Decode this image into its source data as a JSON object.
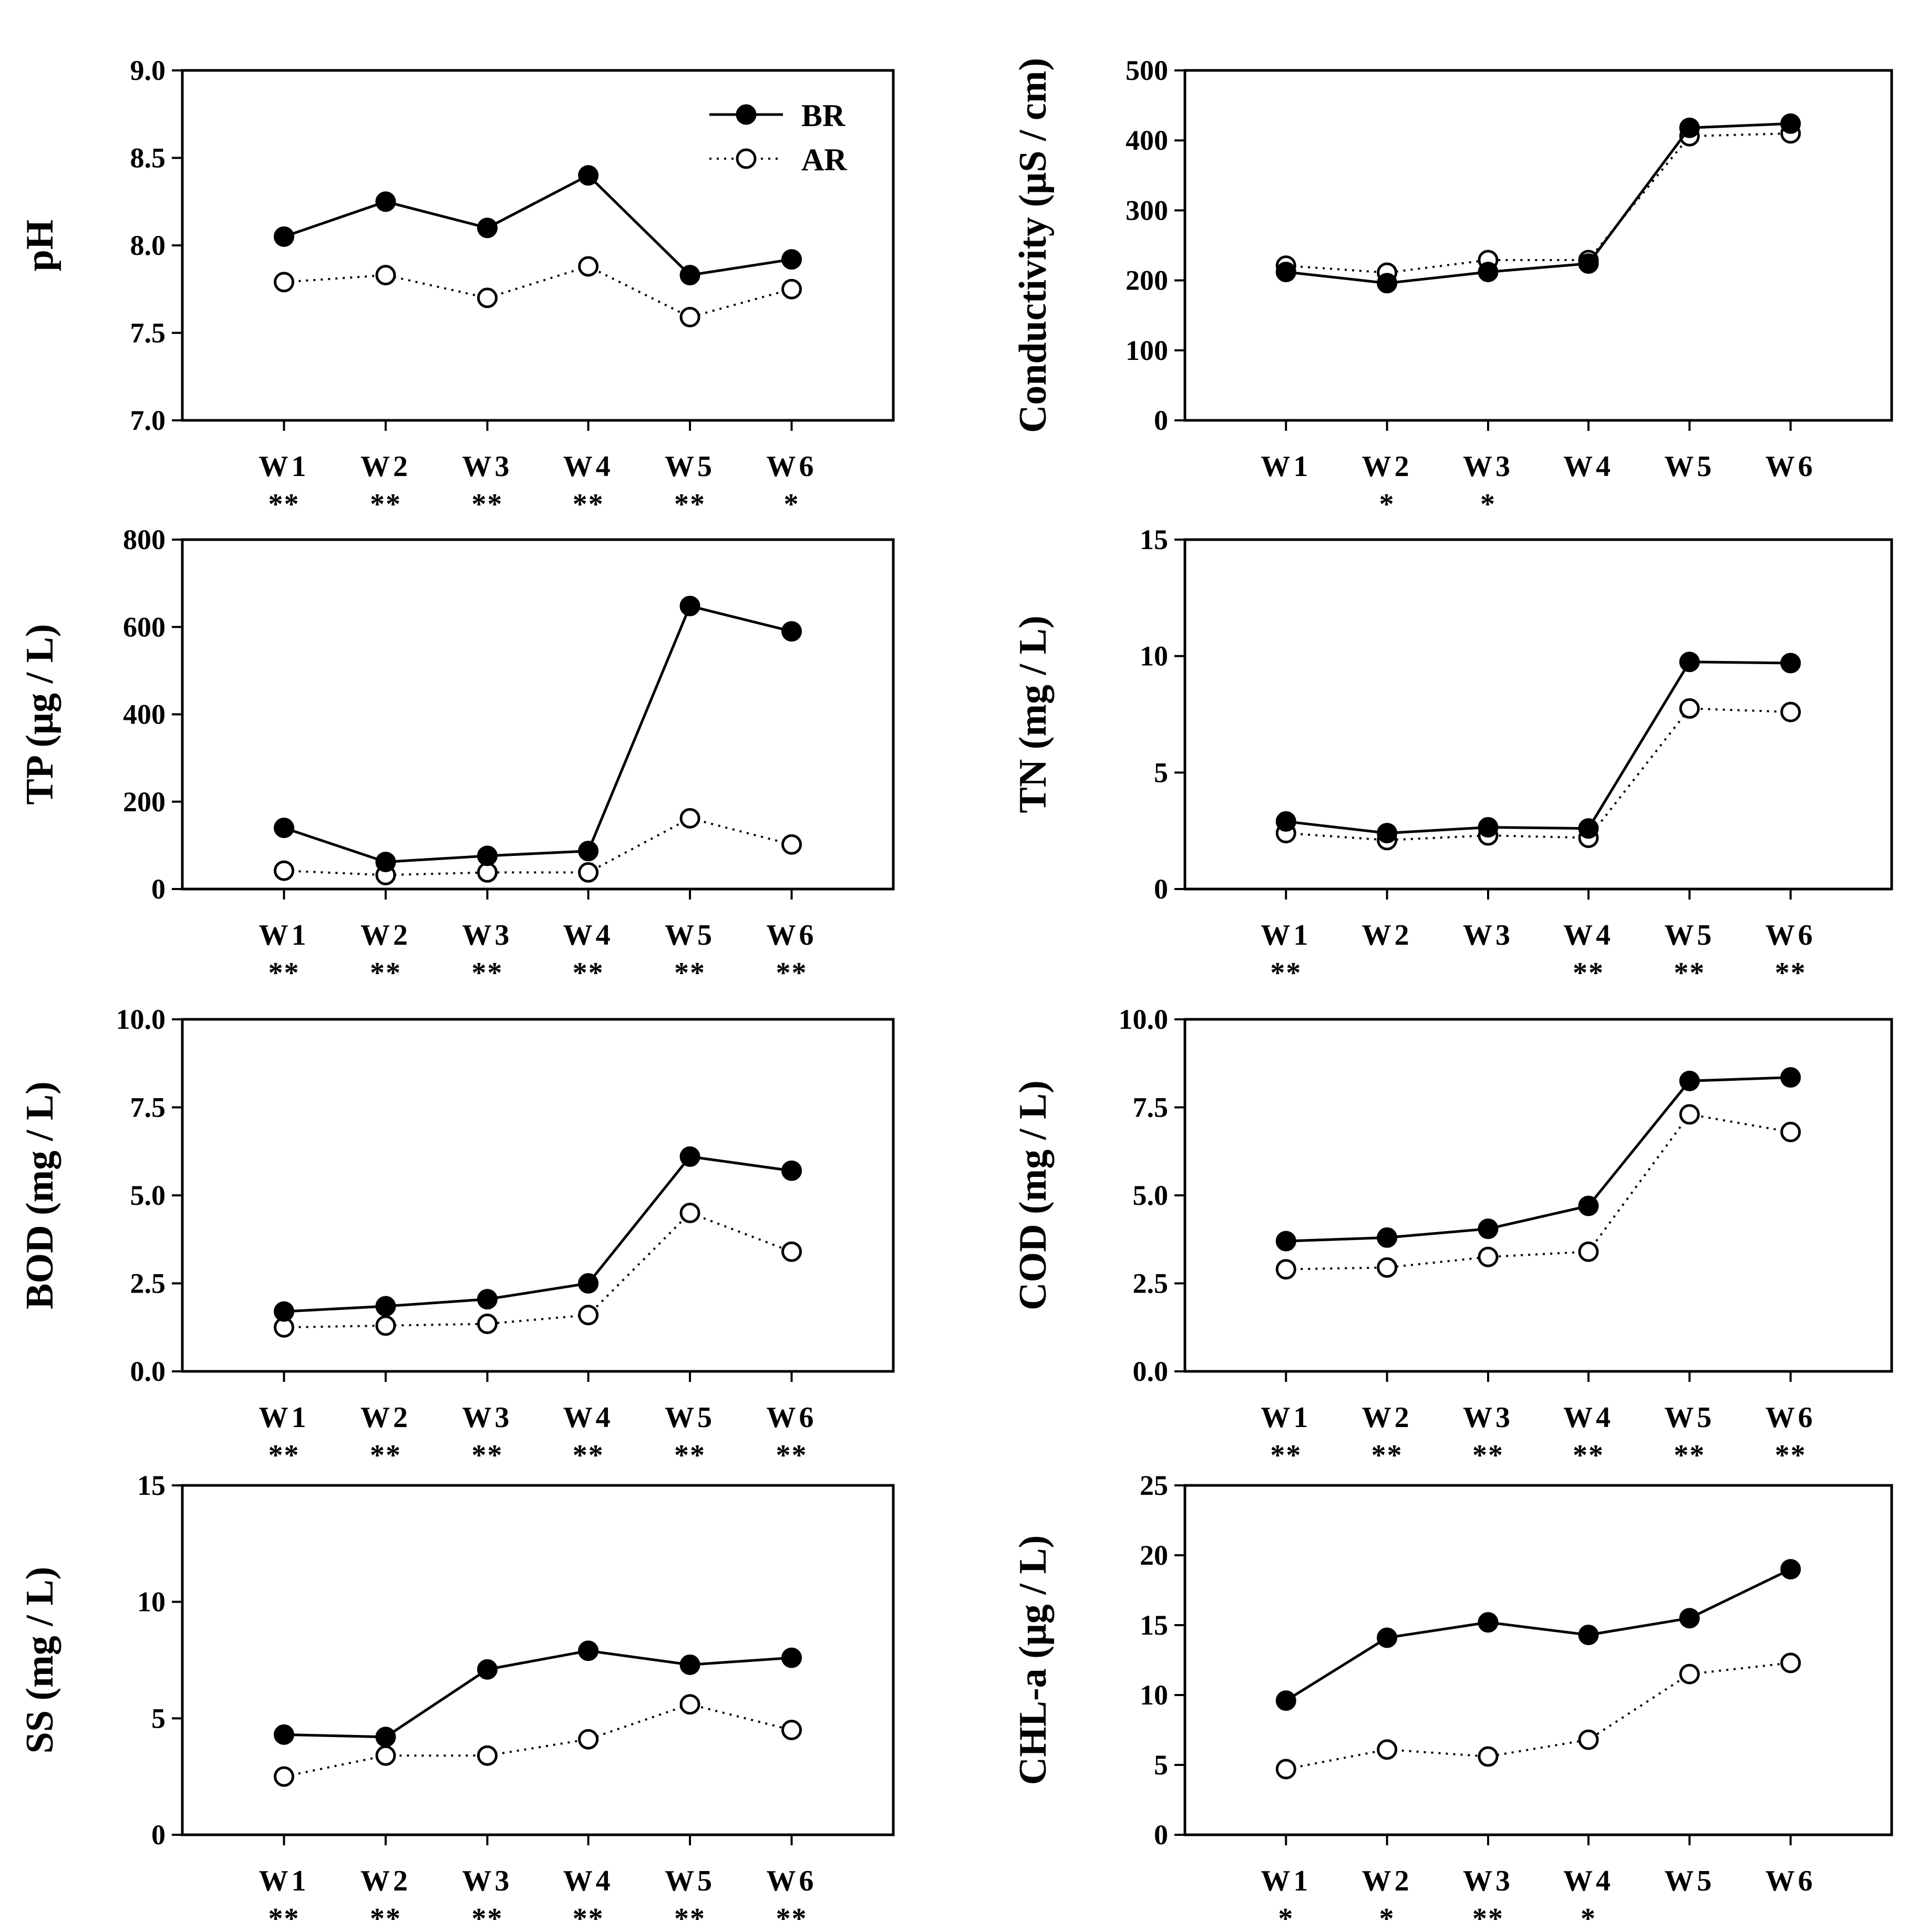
{
  "colors": {
    "background": "#ffffff",
    "ink": "#000000",
    "br_fill": "#000000",
    "ar_fill": "#ffffff"
  },
  "legend": {
    "position": "top-right of first panel",
    "entries": [
      {
        "label": "BR",
        "style": "solid line, filled circle"
      },
      {
        "label": "AR",
        "style": "dotted line, open circle"
      }
    ]
  },
  "chart_data": [
    {
      "type": "line",
      "ylabel": "pH",
      "categories": [
        "W1",
        "W2",
        "W3",
        "W4",
        "W5",
        "W6"
      ],
      "ylim": [
        7.0,
        9.0
      ],
      "yticks": [
        "7.0",
        "7.5",
        "8.0",
        "8.5",
        "9.0"
      ],
      "series": [
        {
          "name": "BR",
          "values": [
            8.05,
            8.25,
            8.1,
            8.4,
            7.83,
            7.92
          ]
        },
        {
          "name": "AR",
          "values": [
            7.79,
            7.83,
            7.7,
            7.88,
            7.59,
            7.75
          ]
        }
      ],
      "significance": [
        "**",
        "**",
        "**",
        "**",
        "**",
        "*"
      ]
    },
    {
      "type": "line",
      "ylabel": "Conductivity (μS / cm)",
      "categories": [
        "W1",
        "W2",
        "W3",
        "W4",
        "W5",
        "W6"
      ],
      "ylim": [
        0,
        500
      ],
      "yticks": [
        "0",
        "100",
        "200",
        "300",
        "400",
        "500"
      ],
      "series": [
        {
          "name": "BR",
          "values": [
            212,
            196,
            212,
            224,
            418,
            424
          ]
        },
        {
          "name": "AR",
          "values": [
            221,
            211,
            229,
            229,
            406,
            410
          ]
        }
      ],
      "significance": [
        "",
        "*",
        "*",
        "",
        "",
        ""
      ]
    },
    {
      "type": "line",
      "ylabel": "TP (μg / L)",
      "categories": [
        "W1",
        "W2",
        "W3",
        "W4",
        "W5",
        "W6"
      ],
      "ylim": [
        0,
        800
      ],
      "yticks": [
        "0",
        "200",
        "400",
        "600",
        "800"
      ],
      "series": [
        {
          "name": "BR",
          "values": [
            140,
            62,
            76,
            87,
            648,
            590
          ]
        },
        {
          "name": "AR",
          "values": [
            42,
            32,
            38,
            38,
            162,
            102
          ]
        }
      ],
      "significance": [
        "**",
        "**",
        "**",
        "**",
        "**",
        "**"
      ]
    },
    {
      "type": "line",
      "ylabel": "TN (mg / L)",
      "categories": [
        "W1",
        "W2",
        "W3",
        "W4",
        "W5",
        "W6"
      ],
      "ylim": [
        0,
        15
      ],
      "yticks": [
        "0",
        "5",
        "10",
        "15"
      ],
      "series": [
        {
          "name": "BR",
          "values": [
            2.9,
            2.4,
            2.65,
            2.6,
            9.75,
            9.7
          ]
        },
        {
          "name": "AR",
          "values": [
            2.4,
            2.1,
            2.3,
            2.2,
            7.75,
            7.6
          ]
        }
      ],
      "significance": [
        "**",
        "",
        "",
        "**",
        "**",
        "**"
      ]
    },
    {
      "type": "line",
      "ylabel": "BOD (mg / L)",
      "categories": [
        "W1",
        "W2",
        "W3",
        "W4",
        "W5",
        "W6"
      ],
      "ylim": [
        0.0,
        10.0
      ],
      "yticks": [
        "0.0",
        "2.5",
        "5.0",
        "7.5",
        "10.0"
      ],
      "series": [
        {
          "name": "BR",
          "values": [
            1.7,
            1.85,
            2.05,
            2.5,
            6.1,
            5.7
          ]
        },
        {
          "name": "AR",
          "values": [
            1.25,
            1.3,
            1.35,
            1.6,
            4.5,
            3.4
          ]
        }
      ],
      "significance": [
        "**",
        "**",
        "**",
        "**",
        "**",
        "**"
      ]
    },
    {
      "type": "line",
      "ylabel": "COD (mg / L)",
      "categories": [
        "W1",
        "W2",
        "W3",
        "W4",
        "W5",
        "W6"
      ],
      "ylim": [
        0.0,
        10.0
      ],
      "yticks": [
        "0.0",
        "2.5",
        "5.0",
        "7.5",
        "10.0"
      ],
      "series": [
        {
          "name": "BR",
          "values": [
            3.7,
            3.8,
            4.05,
            4.7,
            8.25,
            8.35
          ]
        },
        {
          "name": "AR",
          "values": [
            2.9,
            2.95,
            3.25,
            3.4,
            7.3,
            6.8
          ]
        }
      ],
      "significance": [
        "**",
        "**",
        "**",
        "**",
        "**",
        "**"
      ]
    },
    {
      "type": "line",
      "ylabel": "SS (mg / L)",
      "categories": [
        "W1",
        "W2",
        "W3",
        "W4",
        "W5",
        "W6"
      ],
      "ylim": [
        0,
        15
      ],
      "yticks": [
        "0",
        "5",
        "10",
        "15"
      ],
      "series": [
        {
          "name": "BR",
          "values": [
            4.3,
            4.2,
            7.1,
            7.9,
            7.3,
            7.6
          ]
        },
        {
          "name": "AR",
          "values": [
            2.5,
            3.4,
            3.4,
            4.1,
            5.6,
            4.5
          ]
        }
      ],
      "significance": [
        "**",
        "**",
        "**",
        "**",
        "**",
        "**"
      ]
    },
    {
      "type": "line",
      "ylabel": "CHL-a (μg / L)",
      "categories": [
        "W1",
        "W2",
        "W3",
        "W4",
        "W5",
        "W6"
      ],
      "ylim": [
        0,
        25
      ],
      "yticks": [
        "0",
        "5",
        "10",
        "15",
        "20",
        "25"
      ],
      "series": [
        {
          "name": "BR",
          "values": [
            9.6,
            14.1,
            15.2,
            14.3,
            15.5,
            19.0
          ]
        },
        {
          "name": "AR",
          "values": [
            4.7,
            6.1,
            5.6,
            6.8,
            11.5,
            12.3
          ]
        }
      ],
      "significance": [
        "*",
        "*",
        "**",
        "*",
        "",
        ""
      ]
    }
  ]
}
